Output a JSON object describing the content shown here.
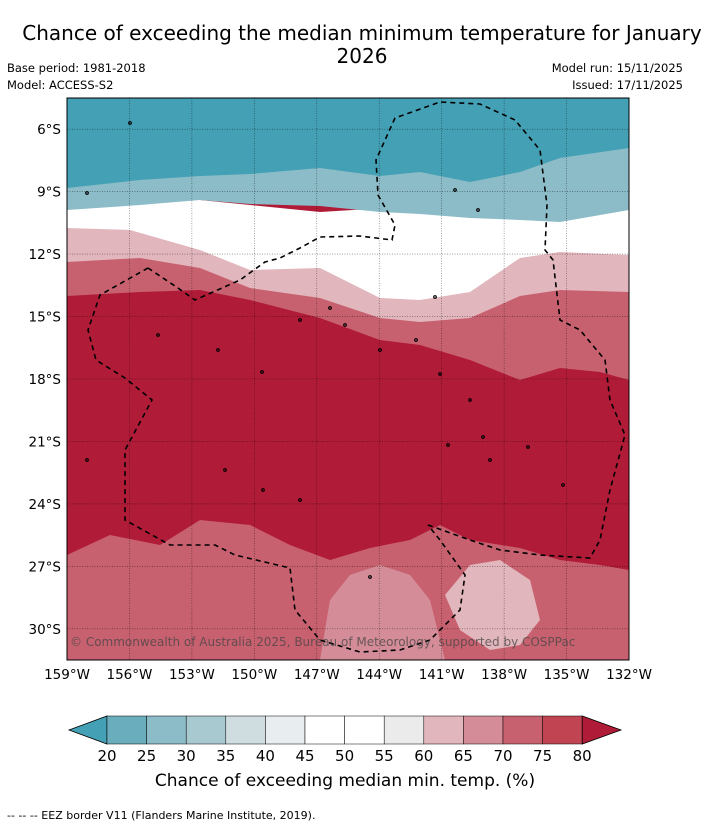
{
  "title": "Chance of exceeding the median minimum temperature for January 2026",
  "base_period": "Base period: 1981-2018",
  "model": "Model: ACCESS-S2",
  "model_run": "Model run: 15/11/2025",
  "issued": "Issued: 17/11/2025",
  "copyright": "© Commonwealth of Australia 2025, Bureau of Meteorology, supported by COSPPac",
  "lat_labels": [
    "6°S",
    "9°S",
    "12°S",
    "15°S",
    "18°S",
    "21°S",
    "24°S",
    "27°S",
    "30°S"
  ],
  "lon_labels": [
    "159°W",
    "156°W",
    "153°W",
    "150°W",
    "147°W",
    "144°W",
    "141°W",
    "138°W",
    "135°W",
    "132°W"
  ],
  "colorbar": {
    "title": "Chance of exceeding median min. temp. (%)",
    "ticks": [
      "20",
      "25",
      "30",
      "35",
      "40",
      "45",
      "50",
      "55",
      "60",
      "65",
      "70",
      "75",
      "80"
    ],
    "colors": [
      "#44a0b4",
      "#6aaebd",
      "#8cbcc8",
      "#a9c9d1",
      "#cfdde1",
      "#e8eef0",
      "#ffffff",
      "#ffffff",
      "#ebebeb",
      "#e2b6bd",
      "#d48d98",
      "#c8616f",
      "#c04452",
      "#b01b38"
    ]
  },
  "legend_note": "--  --  -- EEZ border V11 (Flanders Marine Institute, 2019).",
  "map": {
    "lon_range": [
      -159,
      -132
    ],
    "lat_range": [
      -31.5,
      -4.5
    ],
    "colors": {
      "teal": "#44a0b4",
      "teal_light": "#8cbcc8",
      "white": "#ffffff",
      "pink_light": "#e2b6bd",
      "pink": "#d48d98",
      "red_mid": "#c8616f",
      "red_dark": "#b01b38"
    }
  }
}
